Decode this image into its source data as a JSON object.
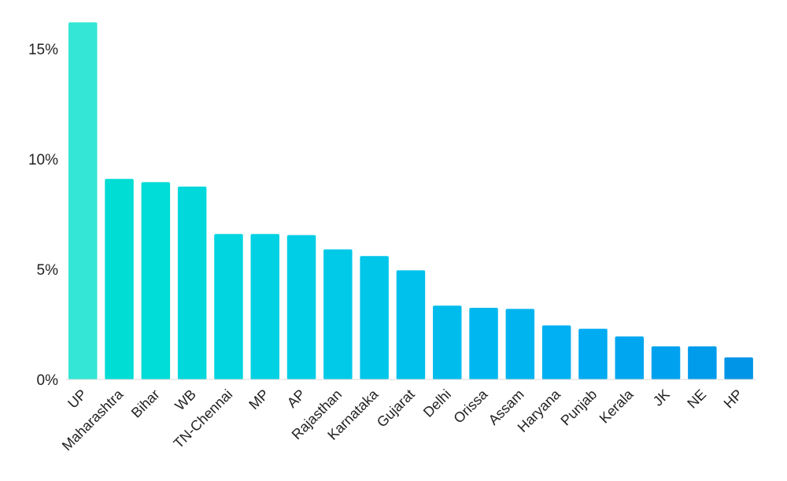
{
  "chart_data": {
    "type": "bar",
    "title": "",
    "xlabel": "",
    "ylabel": "",
    "ylim": [
      0,
      16.5
    ],
    "y_ticks": [
      {
        "value": 0,
        "label": "0%"
      },
      {
        "value": 5,
        "label": "5%"
      },
      {
        "value": 10,
        "label": "10%"
      },
      {
        "value": 15,
        "label": "15%"
      }
    ],
    "grid": false,
    "legend": "none",
    "categories": [
      "UP",
      "Maharashtra",
      "Bihar",
      "WB",
      "TN-Chennai",
      "MP",
      "AP",
      "Rajasthan",
      "Karnataka",
      "Gujarat",
      "Delhi",
      "Orissa",
      "Assam",
      "Haryana",
      "Punjab",
      "Kerala",
      "JK",
      "NE",
      "HP"
    ],
    "values": [
      16.2,
      9.1,
      8.95,
      8.75,
      6.6,
      6.6,
      6.55,
      5.9,
      5.6,
      4.95,
      3.35,
      3.25,
      3.2,
      2.45,
      2.3,
      1.95,
      1.5,
      1.5,
      1.0
    ],
    "colors": [
      "#33e6d5",
      "#00ddd5",
      "#00dcd8",
      "#00d8dc",
      "#00d5e0",
      "#00d2e3",
      "#00cee6",
      "#00cae8",
      "#00c6ea",
      "#00c1ec",
      "#00bced",
      "#00b8ef",
      "#00b4f0",
      "#00b0f2",
      "#00abf2",
      "#00a6f0",
      "#00a1ef",
      "#009cec",
      "#0095e6"
    ]
  }
}
